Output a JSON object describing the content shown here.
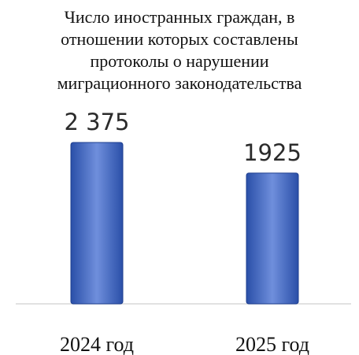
{
  "chart_data": {
    "type": "bar",
    "title_lines": [
      "Число иностранных граждан, в",
      "отношении которых составлены",
      "протоколы о нарушении",
      "миграционного законодательства"
    ],
    "categories": [
      "2024 год",
      "2025 год"
    ],
    "values": [
      2375,
      1925
    ],
    "value_labels": [
      "2 375",
      "1925"
    ],
    "xlabel": "",
    "ylabel": "",
    "ylim": [
      0,
      3360
    ],
    "grid": false,
    "legend": "none",
    "colors": {
      "bar_top": "#6f8fdc",
      "bar_mid": "#3a63c4",
      "bar_bottom": "#2a4fa8",
      "bar_edge": "#1e3f8f",
      "axis": "#d9d9d9"
    }
  }
}
